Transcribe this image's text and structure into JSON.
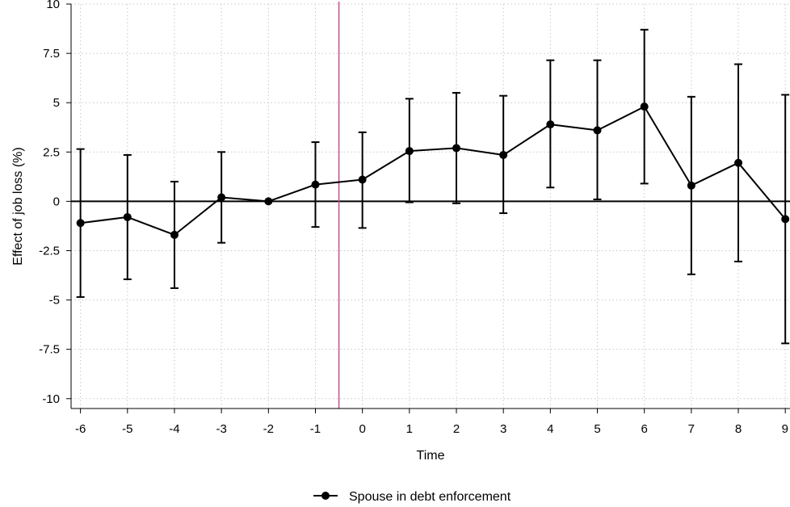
{
  "chart_data": {
    "type": "line",
    "title": "",
    "xlabel": "Time",
    "ylabel": "Effect of job loss (%)",
    "x": [
      -6,
      -5,
      -4,
      -3,
      -2,
      -1,
      0,
      1,
      2,
      3,
      4,
      5,
      6,
      7,
      8,
      9
    ],
    "x_tick_labels": [
      "-6",
      "-5",
      "-4",
      "-3",
      "-2",
      "-1",
      "0",
      "1",
      "2",
      "3",
      "4",
      "5",
      "6",
      "7",
      "8",
      "9"
    ],
    "xlim": [
      -6.2,
      9.1
    ],
    "ylim": [
      -10.5,
      10
    ],
    "y_ticks": [
      10,
      7.5,
      5,
      2.5,
      0,
      -2.5,
      -5,
      -7.5,
      -10
    ],
    "y_tick_labels": [
      "10",
      "7.5",
      "5",
      "2.5",
      "0",
      "-2.5",
      "-5",
      "-7.5",
      "-10"
    ],
    "grid": true,
    "reference_lines": {
      "horizontal_y": 0,
      "vertical_x": -0.5
    },
    "colors": {
      "series": "#000000",
      "vertical_line": "#c0508a",
      "grid": "#c8c8c8"
    },
    "legend_position": "bottom-center",
    "series": [
      {
        "name": "Spouse in debt enforcement",
        "values": [
          -1.1,
          -0.8,
          -1.7,
          0.2,
          0.0,
          0.85,
          1.1,
          2.55,
          2.7,
          2.35,
          3.9,
          3.6,
          4.8,
          0.8,
          1.95,
          -0.9
        ],
        "ci_lower": [
          -4.85,
          -3.95,
          -4.4,
          -2.1,
          0.0,
          -1.3,
          -1.35,
          -0.05,
          -0.1,
          -0.6,
          0.7,
          0.1,
          0.9,
          -3.7,
          -3.05,
          -7.2
        ],
        "ci_upper": [
          2.65,
          2.35,
          1.0,
          2.5,
          0.0,
          3.0,
          3.5,
          5.2,
          5.5,
          5.35,
          7.15,
          7.15,
          8.7,
          5.3,
          6.95,
          5.4
        ]
      }
    ]
  }
}
